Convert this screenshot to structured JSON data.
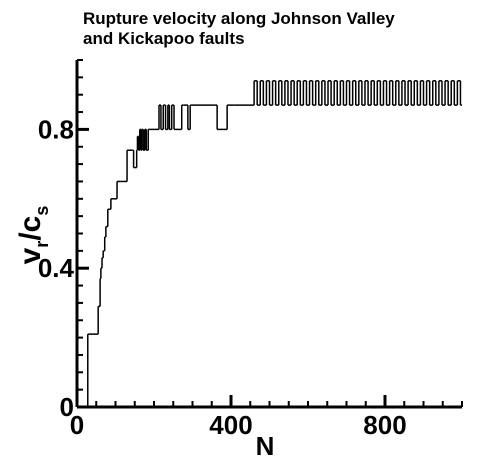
{
  "chart_data": {
    "type": "step",
    "title": [
      "Rupture velocity along Johnson Valley",
      "and Kickapoo faults"
    ],
    "x_label": "N",
    "y_label": [
      "v",
      "r",
      "/c",
      "s"
    ],
    "xlim": [
      0,
      1000
    ],
    "ylim": [
      0,
      1
    ],
    "xticks": [
      0,
      400,
      800
    ],
    "yticks": [
      0,
      0.4,
      0.8
    ],
    "color": "#000000",
    "x": [
      25,
      28,
      55,
      60,
      62,
      65,
      68,
      72,
      75,
      80,
      88,
      96,
      104,
      112,
      130,
      145,
      147,
      155,
      157,
      160,
      163,
      166,
      168,
      172,
      176,
      180,
      185,
      190,
      196,
      202,
      213,
      218,
      224,
      230,
      236,
      240,
      246,
      252,
      272,
      276,
      288,
      294,
      358,
      364,
      390,
      410,
      460,
      468,
      476,
      484,
      492,
      500,
      508,
      516,
      524,
      532,
      540,
      548,
      556,
      564,
      572,
      580,
      588,
      596,
      604,
      612,
      620,
      628,
      636,
      644,
      652,
      660,
      668,
      676,
      684,
      692,
      700,
      708,
      716,
      724,
      732,
      740,
      748,
      756,
      764,
      772,
      780,
      788,
      796,
      804,
      812,
      820,
      828,
      836,
      844,
      852,
      860,
      868,
      876,
      884,
      892,
      900,
      908,
      916,
      924,
      932,
      940,
      948,
      956,
      964,
      972,
      980,
      988,
      996
    ],
    "values": [
      0,
      0.21,
      0.29,
      0.37,
      0.4,
      0.43,
      0.45,
      0.49,
      0.52,
      0.57,
      0.6,
      0.6,
      0.65,
      0.65,
      0.74,
      0.74,
      0.69,
      0.74,
      0.78,
      0.74,
      0.8,
      0.74,
      0.8,
      0.74,
      0.8,
      0.74,
      0.8,
      0.8,
      0.8,
      0.8,
      0.87,
      0.8,
      0.87,
      0.8,
      0.87,
      0.8,
      0.87,
      0.8,
      0.87,
      0.87,
      0.8,
      0.87,
      0.87,
      0.8,
      0.87,
      0.87,
      0.94,
      0.87,
      0.94,
      0.87,
      0.94,
      0.87,
      0.94,
      0.87,
      0.94,
      0.87,
      0.94,
      0.87,
      0.94,
      0.87,
      0.94,
      0.87,
      0.94,
      0.87,
      0.94,
      0.87,
      0.94,
      0.87,
      0.94,
      0.87,
      0.94,
      0.87,
      0.94,
      0.87,
      0.94,
      0.87,
      0.94,
      0.87,
      0.94,
      0.87,
      0.94,
      0.87,
      0.94,
      0.87,
      0.94,
      0.87,
      0.94,
      0.87,
      0.94,
      0.87,
      0.94,
      0.87,
      0.94,
      0.87,
      0.94,
      0.87,
      0.94,
      0.87,
      0.94,
      0.87,
      0.94,
      0.87,
      0.94,
      0.87,
      0.94,
      0.87,
      0.94,
      0.87,
      0.94,
      0.87,
      0.94,
      0.87,
      0.94,
      0.87
    ]
  }
}
